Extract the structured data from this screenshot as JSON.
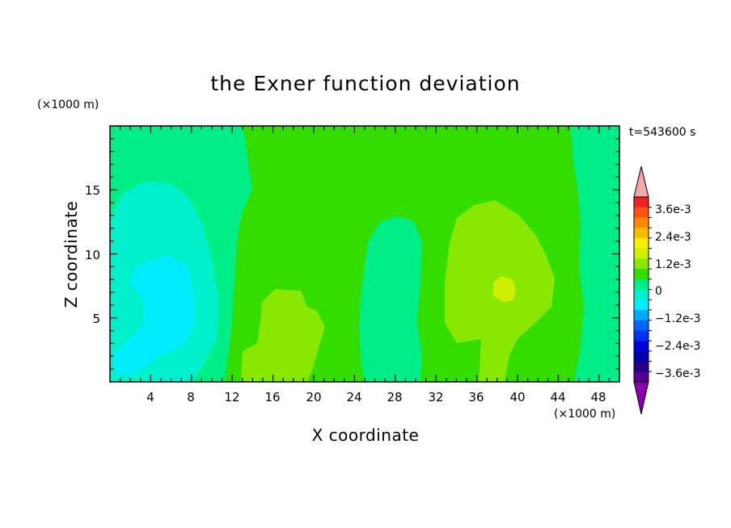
{
  "chart_data": {
    "type": "contour",
    "title": "the Exner function deviation",
    "xlabel": "X coordinate",
    "ylabel": "Z coordinate",
    "x_unit": "(×1000 m)",
    "y_unit": "(×1000 m)",
    "time_label": "t=543600 s",
    "xlim": [
      0,
      50
    ],
    "ylim": [
      0,
      20
    ],
    "x_ticks": [
      "4",
      "8",
      "12",
      "16",
      "20",
      "24",
      "28",
      "32",
      "36",
      "40",
      "44",
      "48"
    ],
    "y_ticks": [
      "5",
      "10",
      "15"
    ],
    "colorbar": {
      "levels": [
        "3.6e-3",
        "2.4e-3",
        "1.2e-3",
        "0",
        "−1.2e-3",
        "−2.4e-3",
        "−3.6e-3"
      ],
      "min_value": -0.0042,
      "max_value": 0.0042,
      "colors_top_to_bottom": [
        "#ee2222",
        "#ff5510",
        "#ff8800",
        "#ffbb00",
        "#ffee00",
        "#ccf000",
        "#88e800",
        "#33dd00",
        "#00ee88",
        "#00f0cc",
        "#00eeff",
        "#00aaff",
        "#0066ff",
        "#0033ee",
        "#0000dd",
        "#0000aa",
        "#220088",
        "#550099"
      ],
      "over_color": "#f4a8a8",
      "under_color": "#8800aa"
    },
    "field_colors": {
      "background": "#33dd00",
      "level_minus_0_3e-3": "#00ee88",
      "level_minus_0_6e-3": "#00f0cc",
      "level_minus_0_9e-3": "#00eeff",
      "level_plus_0_3e-3": "#88e800",
      "level_plus_0_6e-3": "#ccf000"
    }
  }
}
